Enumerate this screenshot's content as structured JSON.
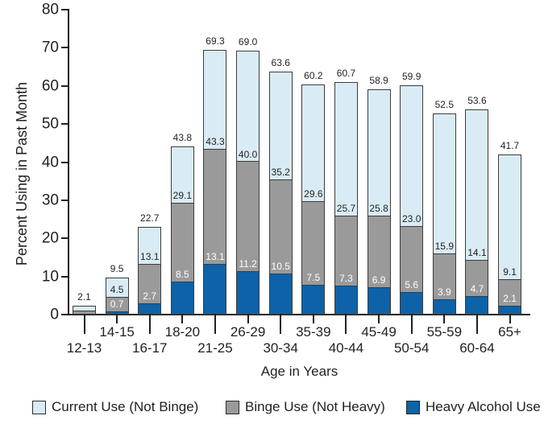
{
  "chart_data": {
    "type": "bar",
    "stacked": true,
    "title": "",
    "xlabel": "Age in Years",
    "ylabel": "Percent Using in Past Month",
    "ylim": [
      0,
      80
    ],
    "yticks": [
      0,
      10,
      20,
      30,
      40,
      50,
      60,
      70,
      80
    ],
    "grid": false,
    "categories": [
      "12-13",
      "14-15",
      "16-17",
      "18-20",
      "21-25",
      "26-29",
      "30-34",
      "35-39",
      "40-44",
      "45-49",
      "50-54",
      "55-59",
      "60-64",
      "65+"
    ],
    "series": [
      {
        "name": "Heavy Alcohol Use",
        "role": "bottom-segment",
        "color": "#0d62a8",
        "cumulative": [
          0.2,
          0.7,
          2.7,
          8.5,
          13.1,
          11.2,
          10.5,
          7.5,
          7.3,
          6.9,
          5.6,
          3.9,
          4.7,
          2.1
        ],
        "labels": [
          "",
          "0.7",
          "2.7",
          "8.5",
          "13.1",
          "11.2",
          "10.5",
          "7.5",
          "7.3",
          "6.9",
          "5.6",
          "3.9",
          "4.7",
          "2.1"
        ]
      },
      {
        "name": "Binge Use (Not Heavy)",
        "role": "middle-segment",
        "color": "#9a9a9a",
        "cumulative": [
          0.9,
          4.5,
          13.1,
          29.1,
          43.3,
          40.0,
          35.2,
          29.6,
          25.7,
          25.8,
          23.0,
          15.9,
          14.1,
          9.1
        ],
        "labels": [
          "",
          "4.5",
          "13.1",
          "29.1",
          "43.3",
          "40.0",
          "35.2",
          "29.6",
          "25.7",
          "25.8",
          "23.0",
          "15.9",
          "14.1",
          "9.1"
        ]
      },
      {
        "name": "Current Use (Not Binge)",
        "role": "top-segment",
        "color": "#d9ecf5",
        "cumulative": [
          2.1,
          9.5,
          22.7,
          43.8,
          69.3,
          69.0,
          63.6,
          60.2,
          60.7,
          58.9,
          59.9,
          52.5,
          53.6,
          41.7
        ],
        "labels": [
          "2.1",
          "9.5",
          "22.7",
          "43.8",
          "69.3",
          "69.0",
          "63.6",
          "60.2",
          "60.7",
          "58.9",
          "59.9",
          "52.5",
          "53.6",
          "41.7"
        ]
      }
    ]
  },
  "legend": {
    "items": [
      {
        "label": "Current Use (Not Binge)",
        "color": "#d9ecf5"
      },
      {
        "label": "Binge Use (Not Heavy)",
        "color": "#9a9a9a"
      },
      {
        "label": "Heavy Alcohol Use",
        "color": "#0d62a8"
      }
    ]
  },
  "colors": {
    "axis": "#231f20",
    "bar_border": "#3c3c3c",
    "text": "#231f20",
    "inner_label_on_gray": "#ffffff"
  }
}
